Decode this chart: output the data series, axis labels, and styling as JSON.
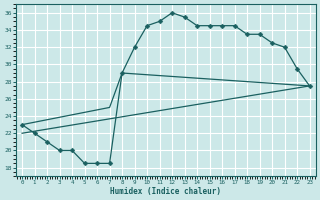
{
  "bg_color": "#cce8e8",
  "grid_color": "#b0d8d8",
  "line_color": "#1a6060",
  "curve1_x": [
    0,
    1,
    2,
    3,
    4,
    5,
    6,
    7,
    8,
    9,
    10,
    11,
    12,
    13,
    14,
    15,
    16,
    17,
    18,
    19,
    20,
    21,
    22,
    23
  ],
  "curve1_y": [
    23.0,
    22.0,
    21.0,
    20.0,
    20.0,
    18.5,
    18.5,
    18.5,
    29.0,
    32.0,
    34.5,
    35.0,
    36.0,
    35.5,
    34.5,
    34.5,
    34.5,
    34.5,
    33.5,
    33.5,
    32.5,
    32.0,
    29.5,
    27.5
  ],
  "line2_x": [
    0,
    23
  ],
  "line2_y": [
    22.0,
    27.5
  ],
  "line3_x": [
    0,
    7,
    8,
    23
  ],
  "line3_y": [
    23.0,
    25.0,
    29.0,
    27.5
  ],
  "xlabel": "Humidex (Indice chaleur)",
  "xlim": [
    -0.5,
    23.5
  ],
  "ylim": [
    17.0,
    37.0
  ],
  "yticks": [
    18,
    20,
    22,
    24,
    26,
    28,
    30,
    32,
    34,
    36
  ],
  "xticks": [
    0,
    1,
    2,
    3,
    4,
    5,
    6,
    7,
    8,
    9,
    10,
    11,
    12,
    13,
    14,
    15,
    16,
    17,
    18,
    19,
    20,
    21,
    22,
    23
  ]
}
